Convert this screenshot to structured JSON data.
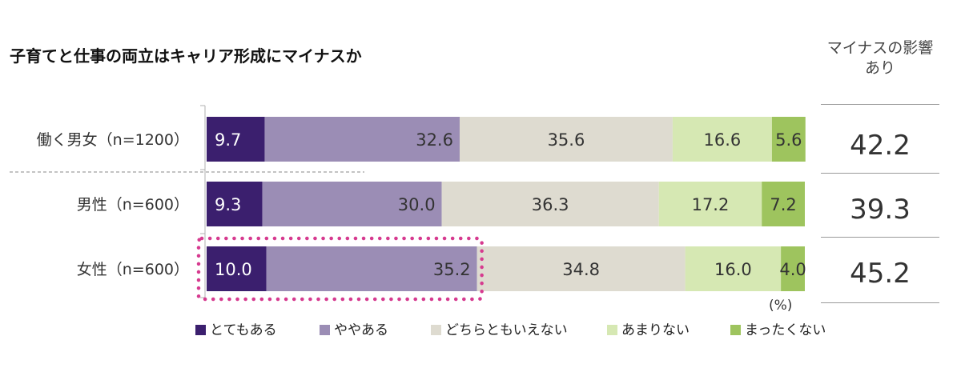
{
  "title": "子育てと仕事の両立はキャリア形成にマイナスか",
  "side_header_line1": "マイナスの影響",
  "side_header_line2": "あり",
  "unit": "(%)",
  "colors": [
    "#3b1f6e",
    "#9b8db5",
    "#dedbd0",
    "#d6e8b3",
    "#9ec45e"
  ],
  "chart_data": {
    "type": "bar",
    "orientation": "horizontal",
    "stacked": true,
    "categories": [
      "働く男女（n=1200）",
      "男性（n=600）",
      "女性（n=600）"
    ],
    "series": [
      {
        "name": "とてもある",
        "values": [
          9.7,
          9.3,
          10.0
        ]
      },
      {
        "name": "ややある",
        "values": [
          32.6,
          30.0,
          35.2
        ]
      },
      {
        "name": "どちらともいえない",
        "values": [
          35.6,
          36.3,
          34.8
        ]
      },
      {
        "name": "あまりない",
        "values": [
          16.6,
          17.2,
          16.0
        ]
      },
      {
        "name": "まったくない",
        "values": [
          5.6,
          7.2,
          4.0
        ]
      }
    ],
    "labels": [
      [
        "9.7",
        "32.6",
        "35.6",
        "16.6",
        "5.6"
      ],
      [
        "9.3",
        "30.0",
        "36.3",
        "17.2",
        "7.2"
      ],
      [
        "10.0",
        "35.2",
        "34.8",
        "16.0",
        "4.0"
      ]
    ],
    "side_values": [
      "42.2",
      "39.3",
      "45.2"
    ],
    "xlim": [
      0,
      100
    ],
    "legend_position": "bottom",
    "highlight": {
      "row": 2,
      "series": [
        0,
        1
      ]
    }
  }
}
